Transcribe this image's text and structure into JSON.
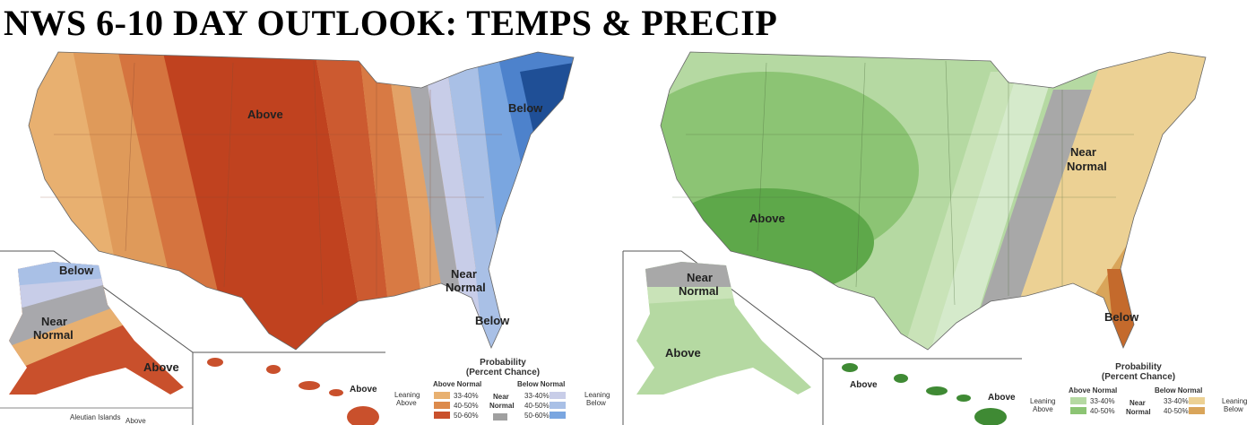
{
  "title": "NWS 6-10 DAY OUTLOOK:  TEMPS & PRECIP",
  "temps": {
    "labels": {
      "above": "Above",
      "below_ne": "Below",
      "near_normal_1": "Near",
      "near_normal_2": "Normal",
      "below_se": "Below"
    },
    "alaska": {
      "below": "Below",
      "near_1": "Near",
      "near_2": "Normal",
      "above": "Above",
      "aleutian": "Aleutian Islands",
      "aleutian_above": "Above"
    },
    "hawaii": {
      "above": "Above"
    },
    "legend": {
      "title1": "Probability",
      "title2": "(Percent Chance)",
      "above_head": "Above Normal",
      "below_head": "Below Normal",
      "near_1": "Near",
      "near_2": "Normal",
      "lean_above_1": "Leaning",
      "lean_above_2": "Above",
      "lean_below_1": "Leaning",
      "lean_below_2": "Below",
      "ranges": [
        "33-40%",
        "40-50%",
        "50-60%"
      ],
      "above_colors": [
        "#e8b070",
        "#dc8a4c",
        "#c9502c"
      ],
      "below_colors": [
        "#c8cde8",
        "#a9c0e6",
        "#7aa6e0"
      ],
      "near_color": "#a0a0a0"
    }
  },
  "precip": {
    "labels": {
      "above": "Above",
      "near_1": "Near",
      "near_2": "Normal",
      "below": "Below"
    },
    "alaska": {
      "near_1": "Near",
      "near_2": "Normal",
      "above": "Above"
    },
    "hawaii": {
      "above_1": "Above",
      "above_2": "Above"
    },
    "legend": {
      "title1": "Probability",
      "title2": "(Percent Chance)",
      "above_head": "Above Normal",
      "below_head": "Below Normal",
      "near_1": "Near",
      "near_2": "Normal",
      "lean_above_1": "Leaning",
      "lean_above_2": "Above",
      "lean_below_1": "Leaning",
      "lean_below_2": "Below",
      "ranges": [
        "33-40%",
        "40-50%"
      ],
      "above_colors": [
        "#b5d9a2",
        "#8cc474"
      ],
      "below_colors": [
        "#ecd194",
        "#d9a55a"
      ],
      "near_color": "#a8a8a8"
    }
  }
}
